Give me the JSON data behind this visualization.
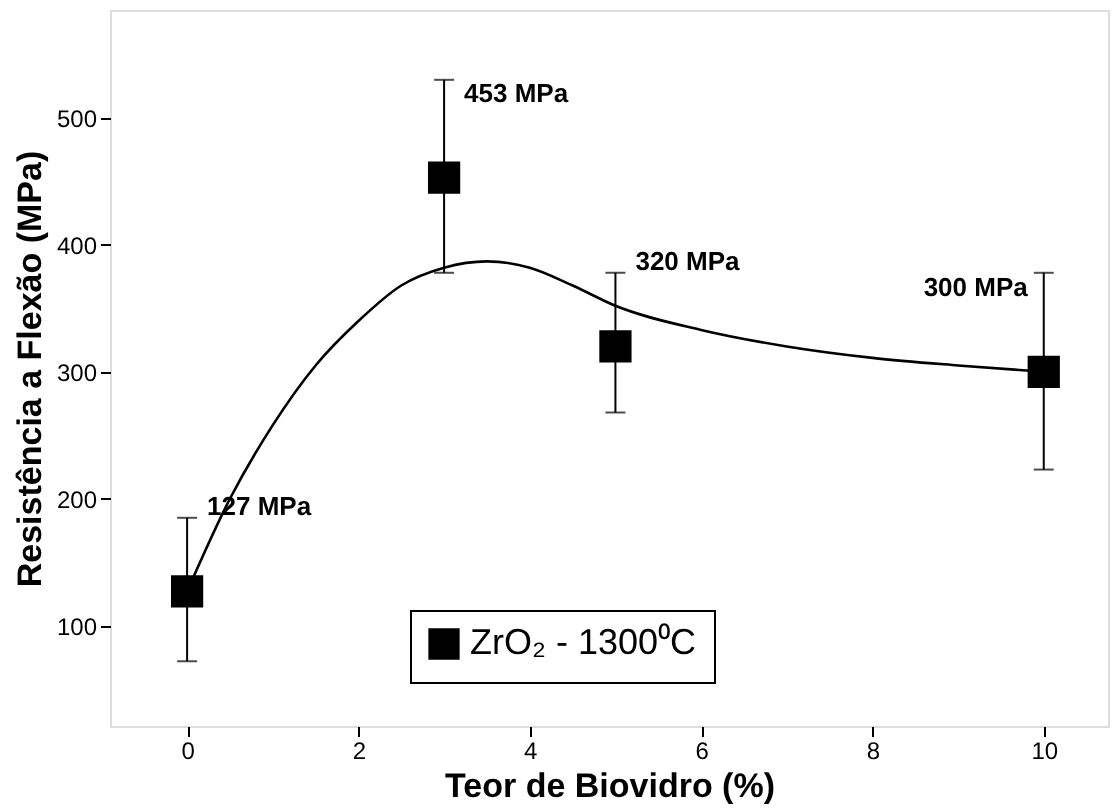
{
  "chart_data": {
    "type": "scatter",
    "xlabel": "Teor de Biovidro (%)",
    "ylabel": "Resistência a Flexão (MPa)",
    "xlim": [
      -0.9,
      10.75
    ],
    "ylim": [
      21,
      585
    ],
    "xticks": [
      0,
      2,
      4,
      6,
      8,
      10
    ],
    "yticks": [
      100,
      200,
      300,
      400,
      500
    ],
    "grid": false,
    "legend": "bottom",
    "x": [
      0,
      3,
      5,
      10
    ],
    "series": [
      {
        "name": "ZrO₂ - 1300⁰C",
        "color": "#000000",
        "marker": "square",
        "values": [
          127,
          453,
          320,
          300
        ],
        "errors": [
          [
            72,
            185
          ],
          [
            378,
            530
          ],
          [
            268,
            378
          ],
          [
            223,
            378
          ]
        ]
      },
      {
        "type": "line",
        "color": "#000000",
        "line_style": "solid",
        "x": [
          0,
          0.5,
          1,
          1.5,
          2,
          2.5,
          3,
          3.5,
          4,
          4.5,
          5,
          6,
          7,
          8,
          9,
          10
        ],
        "values": [
          127,
          200,
          258,
          305,
          340,
          368,
          382,
          387,
          382,
          368,
          352,
          333,
          320,
          311,
          305,
          300
        ]
      }
    ],
    "annotations": [
      {
        "text": "127 MPa",
        "x": 0,
        "y": 127
      },
      {
        "text": "453 MPa",
        "x": 3,
        "y": 453
      },
      {
        "text": "320 MPa",
        "x": 5,
        "y": 320
      },
      {
        "text": "300 MPa",
        "x": 10,
        "y": 300
      }
    ]
  }
}
